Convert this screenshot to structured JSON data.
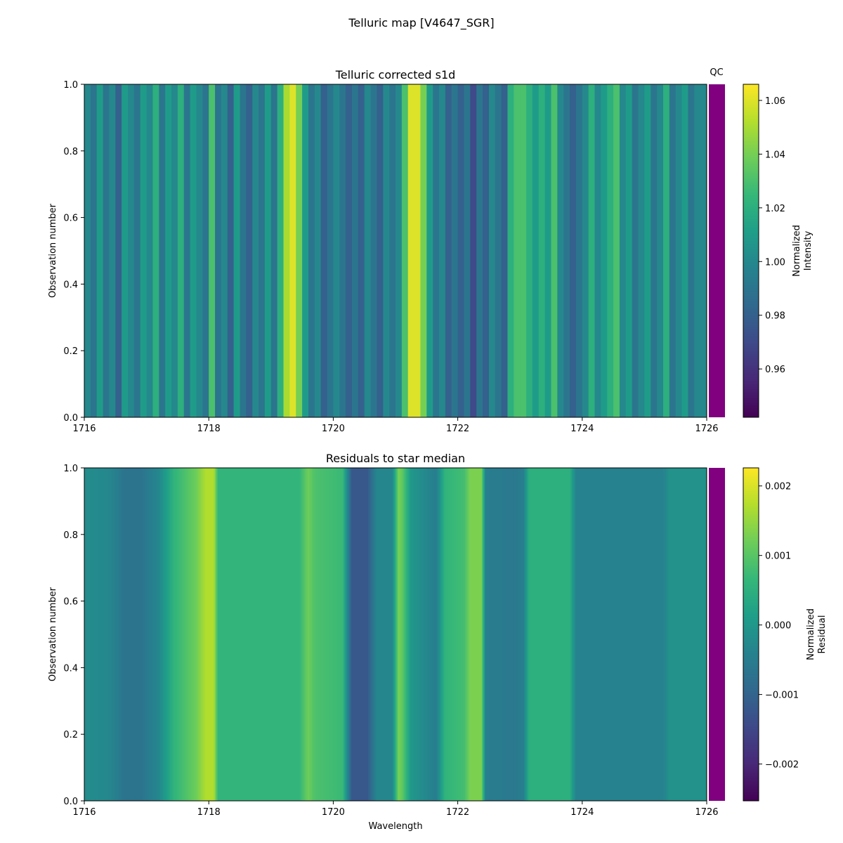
{
  "title": "Telluric map [V4647_SGR]",
  "qc_label": "QC",
  "qc_color": "#800080",
  "chart_data": [
    {
      "type": "heatmap",
      "title": "Telluric corrected s1d",
      "xlabel": "",
      "ylabel": "Observation number",
      "xlim": [
        1716,
        1726
      ],
      "ylim": [
        0.0,
        1.0
      ],
      "xticks": [
        "1716",
        "1718",
        "1720",
        "1722",
        "1724",
        "1726"
      ],
      "yticks": [
        "0.0",
        "0.2",
        "0.4",
        "0.6",
        "0.8",
        "1.0"
      ],
      "colormap": "viridis",
      "clim": [
        0.942,
        1.066
      ],
      "colorbar_label": [
        "Normalized",
        "Intensity"
      ],
      "colorbar_ticks": [
        "0.96",
        "0.98",
        "1.00",
        "1.02",
        "1.04",
        "1.06"
      ],
      "x_start": 1716.0,
      "x_step": 0.1,
      "column_values": [
        1.0,
        0.99,
        1.01,
        0.99,
        1.0,
        0.98,
        1.01,
        1.0,
        0.99,
        1.01,
        1.0,
        1.02,
        0.99,
        1.01,
        1.0,
        1.02,
        0.99,
        1.01,
        1.0,
        0.99,
        1.03,
        0.99,
        1.0,
        0.98,
        1.01,
        0.99,
        0.98,
        1.0,
        0.99,
        1.01,
        0.99,
        1.02,
        1.05,
        1.06,
        1.04,
        1.01,
        0.99,
        1.0,
        0.98,
        0.99,
        1.0,
        0.99,
        0.98,
        0.99,
        0.98,
        1.0,
        0.99,
        0.98,
        1.0,
        0.99,
        1.0,
        1.03,
        1.06,
        1.06,
        1.04,
        1.01,
        0.99,
        1.0,
        0.98,
        0.99,
        0.98,
        0.99,
        0.97,
        0.99,
        0.98,
        1.0,
        0.99,
        0.98,
        1.02,
        1.03,
        1.03,
        1.02,
        1.01,
        1.02,
        1.01,
        1.03,
        1.0,
        0.99,
        0.98,
        0.99,
        1.0,
        1.02,
        1.0,
        1.01,
        1.02,
        1.03,
        1.0,
        1.01,
        0.99,
        1.0,
        1.01,
        0.99,
        1.0,
        1.02,
        0.99,
        1.0,
        1.01,
        0.99,
        1.0,
        1.0
      ]
    },
    {
      "type": "heatmap",
      "title": "Residuals to star median",
      "xlabel": "Wavelength",
      "ylabel": "Observation number",
      "xlim": [
        1716,
        1726
      ],
      "ylim": [
        0.0,
        1.0
      ],
      "xticks": [
        "1716",
        "1718",
        "1720",
        "1722",
        "1724",
        "1726"
      ],
      "yticks": [
        "0.0",
        "0.2",
        "0.4",
        "0.6",
        "0.8",
        "1.0"
      ],
      "colormap": "viridis",
      "clim": [
        -0.00253,
        0.00226
      ],
      "colorbar_label": [
        "Normalized",
        "Residual"
      ],
      "colorbar_ticks": [
        "−0.002",
        "−0.001",
        "0.000",
        "0.001",
        "0.002"
      ],
      "profile": [
        [
          1716.0,
          -0.0002
        ],
        [
          1716.4,
          -0.0003
        ],
        [
          1716.65,
          -0.0007
        ],
        [
          1716.9,
          -0.0007
        ],
        [
          1717.2,
          -0.0003
        ],
        [
          1717.45,
          0.0006
        ],
        [
          1717.8,
          0.0012
        ],
        [
          1717.95,
          0.0017
        ],
        [
          1718.08,
          0.0017
        ],
        [
          1718.15,
          0.0006
        ],
        [
          1719.45,
          0.0006
        ],
        [
          1719.6,
          0.0012
        ],
        [
          1719.7,
          0.0009
        ],
        [
          1720.15,
          0.0007
        ],
        [
          1720.3,
          -0.0012
        ],
        [
          1720.55,
          -0.0012
        ],
        [
          1720.7,
          -0.0003
        ],
        [
          1720.95,
          -0.0003
        ],
        [
          1721.05,
          0.0013
        ],
        [
          1721.12,
          0.001
        ],
        [
          1721.25,
          0.0
        ],
        [
          1721.5,
          -0.0003
        ],
        [
          1721.65,
          -0.0005
        ],
        [
          1721.8,
          0.0006
        ],
        [
          1722.1,
          0.0008
        ],
        [
          1722.2,
          0.0013
        ],
        [
          1722.38,
          0.0013
        ],
        [
          1722.45,
          -0.0005
        ],
        [
          1722.9,
          -0.0006
        ],
        [
          1723.05,
          -0.0005
        ],
        [
          1723.15,
          0.0005
        ],
        [
          1723.8,
          0.0005
        ],
        [
          1723.9,
          -0.0004
        ],
        [
          1725.3,
          -0.0004
        ],
        [
          1725.4,
          -0.0001
        ],
        [
          1726.0,
          -0.0001
        ]
      ]
    }
  ]
}
